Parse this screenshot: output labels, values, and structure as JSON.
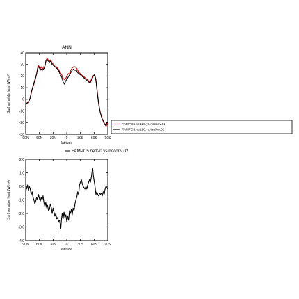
{
  "chart_data": [
    {
      "type": "line",
      "title": "ANN",
      "xlabel": "latitude",
      "ylabel": "Surf sensible heat (W/m²)",
      "xlim": [
        90,
        -90
      ],
      "ylim": [
        -30,
        40
      ],
      "xticks": [
        {
          "value": 90,
          "label": "90N"
        },
        {
          "value": 60,
          "label": "60N"
        },
        {
          "value": 30,
          "label": "30N"
        },
        {
          "value": 0,
          "label": "0"
        },
        {
          "value": -30,
          "label": "30S"
        },
        {
          "value": -60,
          "label": "60S"
        },
        {
          "value": -90,
          "label": "90S"
        }
      ],
      "yticks": [
        {
          "value": 40,
          "label": "40"
        },
        {
          "value": 30,
          "label": "30"
        },
        {
          "value": 20,
          "label": "20"
        },
        {
          "value": 10,
          "label": "10"
        },
        {
          "value": 0,
          "label": "0"
        },
        {
          "value": -10,
          "label": "-10"
        },
        {
          "value": -20,
          "label": "-20"
        },
        {
          "value": -30,
          "label": "-30"
        }
      ],
      "legend": "right",
      "series": [
        {
          "name": "FAMPC5.ne120.ys.noconv.02",
          "color": "#cc0000",
          "points": [
            [
              90,
              -4
            ],
            [
              87,
              -4
            ],
            [
              84,
              -2
            ],
            [
              81,
              0
            ],
            [
              78,
              6
            ],
            [
              75,
              10
            ],
            [
              72,
              13
            ],
            [
              69,
              17
            ],
            [
              66,
              22
            ],
            [
              64,
              27
            ],
            [
              62,
              29
            ],
            [
              60,
              28
            ],
            [
              58,
              26
            ],
            [
              56,
              28
            ],
            [
              53,
              26
            ],
            [
              51,
              28
            ],
            [
              49,
              27
            ],
            [
              47,
              30
            ],
            [
              45,
              34
            ],
            [
              43,
              35
            ],
            [
              41,
              34
            ],
            [
              38,
              33
            ],
            [
              35,
              34
            ],
            [
              32,
              31
            ],
            [
              29,
              30
            ],
            [
              26,
              28
            ],
            [
              23,
              28
            ],
            [
              20,
              27
            ],
            [
              17,
              25
            ],
            [
              14,
              23
            ],
            [
              11,
              21
            ],
            [
              8,
              18
            ],
            [
              5,
              17
            ],
            [
              2,
              18
            ],
            [
              0,
              20
            ],
            [
              -3,
              22
            ],
            [
              -6,
              22
            ],
            [
              -9,
              25
            ],
            [
              -12,
              27
            ],
            [
              -15,
              28
            ],
            [
              -18,
              28
            ],
            [
              -21,
              27
            ],
            [
              -24,
              25
            ],
            [
              -27,
              23
            ],
            [
              -30,
              22
            ],
            [
              -33,
              21
            ],
            [
              -36,
              20
            ],
            [
              -39,
              19
            ],
            [
              -42,
              18
            ],
            [
              -45,
              17
            ],
            [
              -48,
              16
            ],
            [
              -51,
              15
            ],
            [
              -54,
              17
            ],
            [
              -57,
              20
            ],
            [
              -60,
              21
            ],
            [
              -62,
              20
            ],
            [
              -64,
              17
            ],
            [
              -66,
              10
            ],
            [
              -68,
              3
            ],
            [
              -70,
              -3
            ],
            [
              -72,
              -8
            ],
            [
              -74,
              -12
            ],
            [
              -76,
              -14
            ],
            [
              -78,
              -17
            ],
            [
              -80,
              -18
            ],
            [
              -82,
              -20
            ],
            [
              -84,
              -22
            ],
            [
              -86,
              -23
            ],
            [
              -88,
              -22
            ],
            [
              -90,
              -20
            ]
          ]
        },
        {
          "name": "FAMPC5.ne120.ys.tau5m.02",
          "color": "#000000",
          "points": [
            [
              90,
              -4
            ],
            [
              87,
              -3
            ],
            [
              84,
              -2
            ],
            [
              81,
              0
            ],
            [
              78,
              5
            ],
            [
              75,
              10
            ],
            [
              72,
              14
            ],
            [
              69,
              18
            ],
            [
              66,
              22
            ],
            [
              64,
              26
            ],
            [
              62,
              28
            ],
            [
              60,
              27
            ],
            [
              58,
              25
            ],
            [
              56,
              26
            ],
            [
              53,
              25
            ],
            [
              51,
              26
            ],
            [
              49,
              27
            ],
            [
              47,
              31
            ],
            [
              45,
              34
            ],
            [
              43,
              34
            ],
            [
              41,
              33
            ],
            [
              38,
              32
            ],
            [
              35,
              33
            ],
            [
              32,
              30
            ],
            [
              29,
              29
            ],
            [
              26,
              28
            ],
            [
              23,
              27
            ],
            [
              20,
              26
            ],
            [
              17,
              24
            ],
            [
              14,
              21
            ],
            [
              11,
              19
            ],
            [
              8,
              15
            ],
            [
              5,
              13
            ],
            [
              2,
              16
            ],
            [
              0,
              17
            ],
            [
              -3,
              19
            ],
            [
              -6,
              21
            ],
            [
              -9,
              23
            ],
            [
              -12,
              25
            ],
            [
              -15,
              26
            ],
            [
              -18,
              25
            ],
            [
              -21,
              25
            ],
            [
              -24,
              23
            ],
            [
              -27,
              22
            ],
            [
              -30,
              21
            ],
            [
              -33,
              20
            ],
            [
              -36,
              19
            ],
            [
              -39,
              18
            ],
            [
              -42,
              17
            ],
            [
              -45,
              16
            ],
            [
              -48,
              15
            ],
            [
              -51,
              14
            ],
            [
              -54,
              16
            ],
            [
              -57,
              19
            ],
            [
              -60,
              21
            ],
            [
              -62,
              20
            ],
            [
              -64,
              16
            ],
            [
              -66,
              9
            ],
            [
              -68,
              2
            ],
            [
              -70,
              -4
            ],
            [
              -72,
              -9
            ],
            [
              -74,
              -12
            ],
            [
              -76,
              -15
            ],
            [
              -78,
              -17
            ],
            [
              -80,
              -19
            ],
            [
              -82,
              -21
            ],
            [
              -84,
              -22
            ],
            [
              -86,
              -22
            ],
            [
              -88,
              -20
            ],
            [
              -90,
              -20
            ]
          ]
        }
      ]
    },
    {
      "type": "line",
      "title": "",
      "xlabel": "latitude",
      "ylabel": "Surf sensible heat (W/m²)",
      "xlim": [
        90,
        -90
      ],
      "ylim": [
        -4,
        2
      ],
      "xticks": [
        {
          "value": 90,
          "label": "90N"
        },
        {
          "value": 60,
          "label": "60N"
        },
        {
          "value": 30,
          "label": "30N"
        },
        {
          "value": 0,
          "label": "0"
        },
        {
          "value": -30,
          "label": "30S"
        },
        {
          "value": -60,
          "label": "60S"
        },
        {
          "value": -90,
          "label": "90S"
        }
      ],
      "yticks": [
        {
          "value": 2,
          "label": "2.0"
        },
        {
          "value": 1,
          "label": "1.0"
        },
        {
          "value": 0,
          "label": "0.0"
        },
        {
          "value": -1,
          "label": "-1.0"
        },
        {
          "value": -2,
          "label": "-2.0"
        },
        {
          "value": -3,
          "label": "-3.0"
        },
        {
          "value": -4,
          "label": "-4.0"
        }
      ],
      "legend": "top",
      "series": [
        {
          "name": "FAMPC5.ne120.ys.noconv.02",
          "color": "#000000",
          "points": [
            [
              90,
              0.0
            ],
            [
              88,
              -0.2
            ],
            [
              86,
              0.1
            ],
            [
              84,
              -0.3
            ],
            [
              82,
              0.0
            ],
            [
              80,
              -0.2
            ],
            [
              78,
              -0.6
            ],
            [
              76,
              -0.4
            ],
            [
              74,
              -0.8
            ],
            [
              72,
              -1.0
            ],
            [
              70,
              -1.3
            ],
            [
              68,
              -1.1
            ],
            [
              66,
              -0.8
            ],
            [
              64,
              -1.0
            ],
            [
              62,
              -0.6
            ],
            [
              60,
              -0.9
            ],
            [
              58,
              -1.1
            ],
            [
              56,
              -0.8
            ],
            [
              54,
              -1.0
            ],
            [
              52,
              -0.7
            ],
            [
              50,
              -1.2
            ],
            [
              48,
              -1.5
            ],
            [
              46,
              -1.2
            ],
            [
              44,
              -1.6
            ],
            [
              42,
              -1.4
            ],
            [
              40,
              -1.8
            ],
            [
              38,
              -1.7
            ],
            [
              36,
              -1.3
            ],
            [
              34,
              -1.5
            ],
            [
              32,
              -2.0
            ],
            [
              30,
              -1.6
            ],
            [
              28,
              -1.9
            ],
            [
              26,
              -2.2
            ],
            [
              24,
              -2.0
            ],
            [
              22,
              -2.4
            ],
            [
              20,
              -2.3
            ],
            [
              18,
              -2.6
            ],
            [
              16,
              -2.5
            ],
            [
              14,
              -2.8
            ],
            [
              13,
              -3.1
            ],
            [
              12,
              -2.6
            ],
            [
              10,
              -2.0
            ],
            [
              8,
              -2.4
            ],
            [
              6,
              -1.9
            ],
            [
              4,
              -2.3
            ],
            [
              2,
              -2.1
            ],
            [
              0,
              -2.6
            ],
            [
              -2,
              -2.2
            ],
            [
              -4,
              -2.5
            ],
            [
              -6,
              -1.8
            ],
            [
              -8,
              -2.0
            ],
            [
              -10,
              -1.7
            ],
            [
              -12,
              -2.1
            ],
            [
              -14,
              -1.6
            ],
            [
              -16,
              -1.8
            ],
            [
              -18,
              -1.3
            ],
            [
              -20,
              -1.0
            ],
            [
              -22,
              -0.8
            ],
            [
              -24,
              -0.4
            ],
            [
              -26,
              -0.6
            ],
            [
              -28,
              0.1
            ],
            [
              -30,
              0.3
            ],
            [
              -32,
              0.5
            ],
            [
              -34,
              0.2
            ],
            [
              -36,
              0.0
            ],
            [
              -38,
              -0.1
            ],
            [
              -40,
              -0.2
            ],
            [
              -42,
              0.0
            ],
            [
              -44,
              -0.2
            ],
            [
              -46,
              0.1
            ],
            [
              -48,
              0.3
            ],
            [
              -50,
              0.5
            ],
            [
              -52,
              0.3
            ],
            [
              -54,
              0.7
            ],
            [
              -56,
              1.2
            ],
            [
              -57,
              1.3
            ],
            [
              -58,
              0.9
            ],
            [
              -60,
              0.4
            ],
            [
              -62,
              0.0
            ],
            [
              -64,
              -0.6
            ],
            [
              -66,
              -0.4
            ],
            [
              -68,
              -0.6
            ],
            [
              -70,
              -0.7
            ],
            [
              -72,
              -0.5
            ],
            [
              -74,
              -0.6
            ],
            [
              -76,
              -0.5
            ],
            [
              -78,
              -0.7
            ],
            [
              -80,
              -0.4
            ],
            [
              -82,
              -0.6
            ],
            [
              -84,
              -0.2
            ],
            [
              -86,
              0.0
            ],
            [
              -88,
              -0.1
            ],
            [
              -90,
              -0.2
            ]
          ]
        }
      ]
    }
  ]
}
